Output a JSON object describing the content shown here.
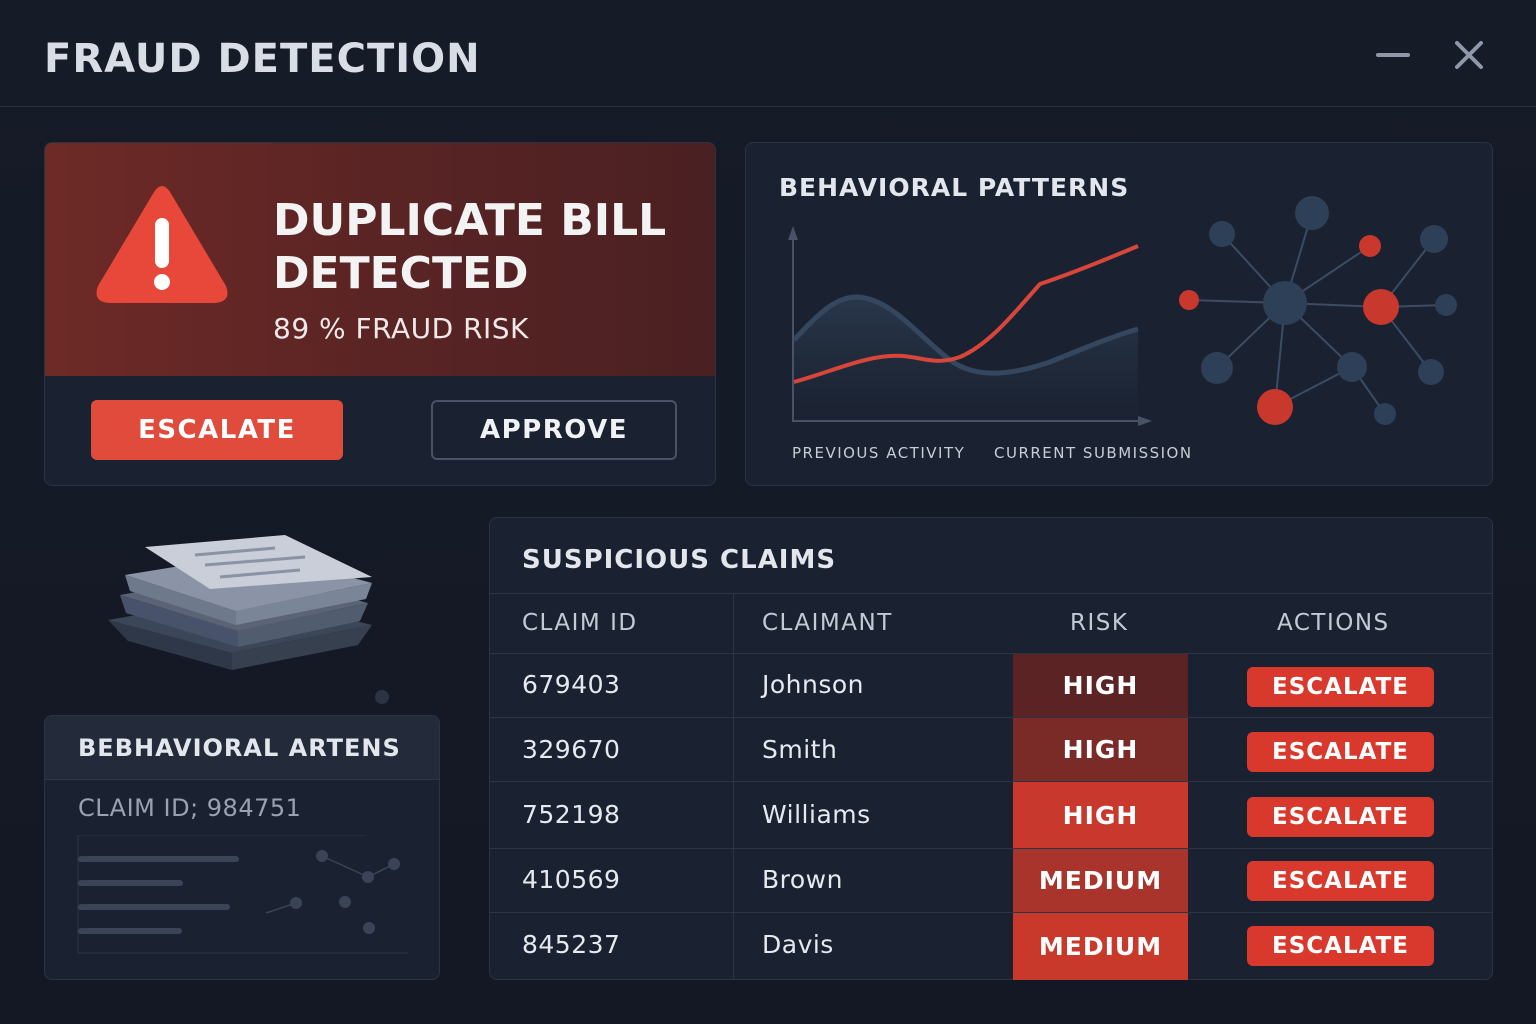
{
  "window": {
    "title": "FRAUD DETECTION",
    "minimize_icon": "minimize-icon",
    "close_icon": "close-icon"
  },
  "alert": {
    "icon": "warning-triangle-icon",
    "title_line1": "DUPLICATE BILL",
    "title_line2": "DETECTED",
    "risk_text": "89 % FRAUD RISK",
    "fraud_risk_percent": 89,
    "escalate_label": "ESCALATE",
    "approve_label": "APPROVE"
  },
  "behavioral_patterns": {
    "title": "BEHAVIORAL PATTERNS",
    "legend_previous": "PREVIOUS ACTIVITY",
    "legend_current": "CURRENT SUBMISSION"
  },
  "mini_card": {
    "title": "BEBHAVIORAL ARTENS",
    "claim_text": "CLAIM ID; 984751"
  },
  "claims": {
    "title": "SUSPICIOUS CLAIMS",
    "headers": [
      "CLAIM ID",
      "CLAIMANT",
      "RISK",
      "ACTIONS"
    ],
    "rows": [
      {
        "id": "679403",
        "claimant": "Johnson",
        "risk": "HIGH",
        "action": "ESCALATE"
      },
      {
        "id": "329670",
        "claimant": "Smith",
        "risk": "HIGH",
        "action": "ESCALATE"
      },
      {
        "id": "752198",
        "claimant": "Williams",
        "risk": "HIGH",
        "action": "ESCALATE"
      },
      {
        "id": "410569",
        "claimant": "Brown",
        "risk": "MEDIUM",
        "action": "ESCALATE"
      },
      {
        "id": "845237",
        "claimant": "Davis",
        "risk": "MEDIUM",
        "action": "ESCALATE"
      }
    ]
  },
  "colors": {
    "accent_red": "#e04b3b",
    "risk_high_dark": "#5b2323",
    "risk_high_mid": "#7a2a27",
    "risk_high_bright": "#c8382c",
    "risk_medium_mid": "#a8342b",
    "risk_medium_bright": "#c8392c",
    "line_blue": "#34475e"
  }
}
